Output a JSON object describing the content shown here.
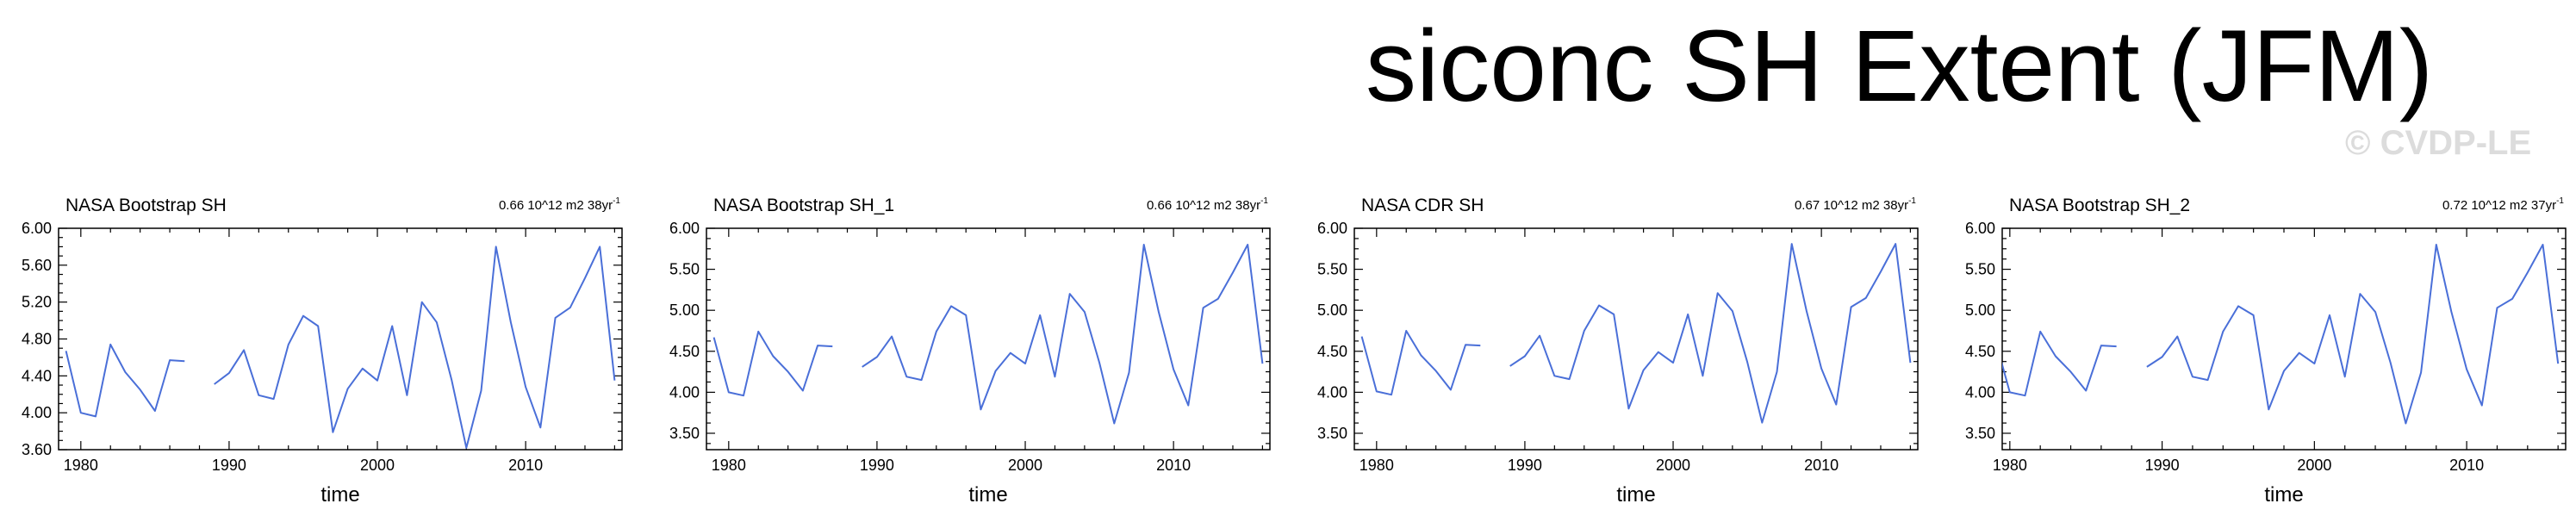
{
  "title": "siconc SH Extent (JFM)",
  "watermark": "© CVDP-LE",
  "colors": {
    "line": "#4a6fd8",
    "axis": "#000000",
    "watermark": "#dcdcdc"
  },
  "chart_data": [
    {
      "type": "line",
      "title": "NASA Bootstrap SH",
      "trend_text": "0.66 10^12 m2 38yr",
      "trend_superscript": "-1",
      "xlabel": "time",
      "ylabel": "",
      "xlim": [
        1978.5,
        2016.5
      ],
      "ylim": [
        3.6,
        6.0
      ],
      "yticks": [
        3.6,
        4.0,
        4.4,
        4.8,
        5.2,
        5.6,
        6.0
      ],
      "ytick_labels": [
        "3.60",
        "4.00",
        "4.40",
        "4.80",
        "5.20",
        "5.60",
        "6.00"
      ],
      "xticks": [
        1980,
        1990,
        2000,
        2010
      ],
      "xtick_labels": [
        "1980",
        "1990",
        "2000",
        "2010"
      ],
      "grid": false,
      "series": [
        {
          "x": [
            1979,
            1980,
            1981,
            1982,
            1983,
            1984,
            1985,
            1986,
            1987,
            1988,
            1989,
            1990,
            1991,
            1992,
            1993,
            1994,
            1995,
            1996,
            1997,
            1998,
            1999,
            2000,
            2001,
            2002,
            2003,
            2004,
            2005,
            2006,
            2007,
            2008,
            2009,
            2010,
            2011,
            2012,
            2013,
            2014,
            2015,
            2016
          ],
          "y": [
            4.67,
            4.0,
            3.96,
            4.74,
            4.44,
            4.25,
            4.02,
            4.57,
            4.56,
            null,
            4.31,
            4.43,
            4.68,
            4.19,
            4.15,
            4.74,
            5.05,
            4.94,
            3.79,
            4.26,
            4.48,
            4.35,
            4.94,
            4.19,
            5.2,
            4.98,
            4.36,
            3.62,
            4.24,
            5.8,
            4.98,
            4.28,
            3.84,
            5.03,
            5.14,
            5.46,
            5.8,
            4.35
          ]
        }
      ]
    },
    {
      "type": "line",
      "title": "NASA Bootstrap SH_1",
      "trend_text": "0.66 10^12 m2 38yr",
      "trend_superscript": "-1",
      "xlabel": "time",
      "ylabel": "",
      "xlim": [
        1978.5,
        2016.5
      ],
      "ylim": [
        3.3,
        6.0
      ],
      "yticks": [
        3.5,
        4.0,
        4.5,
        5.0,
        5.5,
        6.0
      ],
      "ytick_labels": [
        "3.50",
        "4.00",
        "4.50",
        "5.00",
        "5.50",
        "6.00"
      ],
      "xticks": [
        1980,
        1990,
        2000,
        2010
      ],
      "xtick_labels": [
        "1980",
        "1990",
        "2000",
        "2010"
      ],
      "grid": false,
      "series": [
        {
          "x": [
            1979,
            1980,
            1981,
            1982,
            1983,
            1984,
            1985,
            1986,
            1987,
            1988,
            1989,
            1990,
            1991,
            1992,
            1993,
            1994,
            1995,
            1996,
            1997,
            1998,
            1999,
            2000,
            2001,
            2002,
            2003,
            2004,
            2005,
            2006,
            2007,
            2008,
            2009,
            2010,
            2011,
            2012,
            2013,
            2014,
            2015,
            2016
          ],
          "y": [
            4.67,
            4.0,
            3.96,
            4.74,
            4.44,
            4.25,
            4.02,
            4.57,
            4.56,
            null,
            4.31,
            4.43,
            4.68,
            4.19,
            4.15,
            4.74,
            5.05,
            4.94,
            3.79,
            4.26,
            4.48,
            4.35,
            4.94,
            4.19,
            5.2,
            4.98,
            4.36,
            3.62,
            4.24,
            5.8,
            4.98,
            4.28,
            3.84,
            5.03,
            5.14,
            5.46,
            5.8,
            4.35
          ]
        }
      ]
    },
    {
      "type": "line",
      "title": "NASA CDR SH",
      "trend_text": "0.67 10^12 m2 38yr",
      "trend_superscript": "-1",
      "xlabel": "time",
      "ylabel": "",
      "xlim": [
        1978.5,
        2016.5
      ],
      "ylim": [
        3.3,
        6.0
      ],
      "yticks": [
        3.5,
        4.0,
        4.5,
        5.0,
        5.5,
        6.0
      ],
      "ytick_labels": [
        "3.50",
        "4.00",
        "4.50",
        "5.00",
        "5.50",
        "6.00"
      ],
      "xticks": [
        1980,
        1990,
        2000,
        2010
      ],
      "xtick_labels": [
        "1980",
        "1990",
        "2000",
        "2010"
      ],
      "grid": false,
      "series": [
        {
          "x": [
            1979,
            1980,
            1981,
            1982,
            1983,
            1984,
            1985,
            1986,
            1987,
            1988,
            1989,
            1990,
            1991,
            1992,
            1993,
            1994,
            1995,
            1996,
            1997,
            1998,
            1999,
            2000,
            2001,
            2002,
            2003,
            2004,
            2005,
            2006,
            2007,
            2008,
            2009,
            2010,
            2011,
            2012,
            2013,
            2014,
            2015,
            2016
          ],
          "y": [
            4.68,
            4.01,
            3.97,
            4.75,
            4.45,
            4.26,
            4.03,
            4.58,
            4.57,
            null,
            4.32,
            4.44,
            4.69,
            4.2,
            4.16,
            4.75,
            5.06,
            4.95,
            3.8,
            4.27,
            4.49,
            4.36,
            4.95,
            4.2,
            5.21,
            4.99,
            4.37,
            3.63,
            4.25,
            5.81,
            4.99,
            4.29,
            3.85,
            5.04,
            5.15,
            5.47,
            5.81,
            4.36
          ]
        }
      ]
    },
    {
      "type": "line",
      "title": "NASA Bootstrap SH_2",
      "trend_text": "0.72 10^12 m2 37yr",
      "trend_superscript": "-1",
      "xlabel": "time",
      "ylabel": "",
      "xlim": [
        1979.5,
        2016.5
      ],
      "ylim": [
        3.3,
        6.0
      ],
      "yticks": [
        3.5,
        4.0,
        4.5,
        5.0,
        5.5,
        6.0
      ],
      "ytick_labels": [
        "3.50",
        "4.00",
        "4.50",
        "5.00",
        "5.50",
        "6.00"
      ],
      "xticks": [
        1980,
        1990,
        2000,
        2010
      ],
      "xtick_labels": [
        "1980",
        "1990",
        "2000",
        "2010"
      ],
      "grid": false,
      "series": [
        {
          "x": [
            1979,
            1980,
            1981,
            1982,
            1983,
            1984,
            1985,
            1986,
            1987,
            1988,
            1989,
            1990,
            1991,
            1992,
            1993,
            1994,
            1995,
            1996,
            1997,
            1998,
            1999,
            2000,
            2001,
            2002,
            2003,
            2004,
            2005,
            2006,
            2007,
            2008,
            2009,
            2010,
            2011,
            2012,
            2013,
            2014,
            2015,
            2016
          ],
          "y": [
            4.67,
            4.0,
            3.96,
            4.74,
            4.44,
            4.25,
            4.02,
            4.57,
            4.56,
            null,
            4.31,
            4.43,
            4.68,
            4.19,
            4.15,
            4.74,
            5.05,
            4.94,
            3.79,
            4.26,
            4.48,
            4.35,
            4.94,
            4.19,
            5.2,
            4.98,
            4.36,
            3.62,
            4.24,
            5.8,
            4.98,
            4.28,
            3.84,
            5.03,
            5.14,
            5.46,
            5.8,
            4.35
          ]
        }
      ]
    }
  ]
}
